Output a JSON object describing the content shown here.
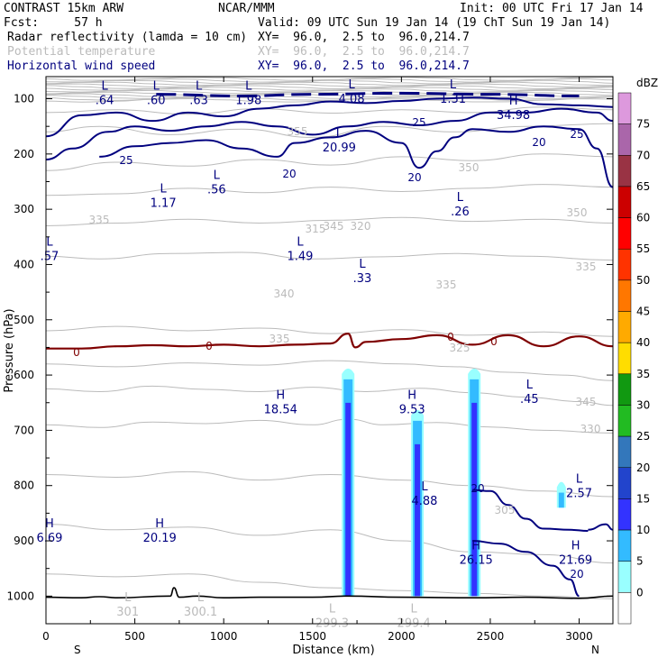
{
  "header": {
    "left_line1": "CONTRAST 15km ARW",
    "center_line1": "NCAR/MMM",
    "right_line1": "Init: 00 UTC Fri 17 Jan 14",
    "left_line2": "Fcst:     57 h",
    "valid_line2": "Valid: 09 UTC Sun 19 Jan 14 (19 ChT Sun 19 Jan 14)",
    "fields": [
      {
        "name": "Radar reflectivity (lamda = 10 cm)",
        "range": "XY=  96.0,  2.5 to  96.0,214.7",
        "color": "#000000"
      },
      {
        "name": "Potential temperature",
        "range": "XY=  96.0,  2.5 to  96.0,214.7",
        "color": "#bbbbbb"
      },
      {
        "name": "Horizontal wind speed",
        "range": "XY=  96.0,  2.5 to  96.0,214.7",
        "color": "#00007f"
      }
    ]
  },
  "colorbar": {
    "unit": "dBZ",
    "levels": [
      "0",
      "5",
      "10",
      "15",
      "20",
      "25",
      "30",
      "35",
      "40",
      "45",
      "50",
      "55",
      "60",
      "65",
      "70",
      "75"
    ],
    "colors": [
      "#ffffff",
      "#99ffff",
      "#33bbff",
      "#3333ff",
      "#2244cc",
      "#3377bb",
      "#22bb22",
      "#119911",
      "#ffdd00",
      "#ffaa00",
      "#ff7700",
      "#ff3300",
      "#ff0000",
      "#cc0000",
      "#993344",
      "#aa66aa",
      "#dd99dd"
    ]
  },
  "chart_data": {
    "type": "cross-section",
    "xlabel": "Distance (km)",
    "ylabel": "Pressure (hPa)",
    "xlim": [
      0,
      3190
    ],
    "ylim": [
      1050,
      60
    ],
    "x_ticks": [
      "0",
      "500",
      "1000",
      "1500",
      "2000",
      "2500",
      "3000"
    ],
    "x_tick_values": [
      0,
      500,
      1000,
      1500,
      2000,
      2500,
      3000
    ],
    "y_ticks": [
      "100",
      "200",
      "300",
      "400",
      "500",
      "600",
      "700",
      "800",
      "900",
      "1000"
    ],
    "y_tick_values": [
      100,
      200,
      300,
      400,
      500,
      600,
      700,
      800,
      900,
      1000
    ],
    "end_labels": {
      "left": "S",
      "right": "N"
    },
    "theta_contours": [
      {
        "value": 301,
        "label": "301"
      },
      {
        "value": 315,
        "label": "315"
      },
      {
        "value": 320,
        "label": "320"
      },
      {
        "value": 325,
        "label": "325"
      },
      {
        "value": 335,
        "label": "335"
      },
      {
        "value": 340,
        "label": "340"
      },
      {
        "value": 345,
        "label": "345"
      },
      {
        "value": 350,
        "label": "350"
      },
      {
        "value": 355,
        "label": "355"
      }
    ],
    "wind_contours": [
      "20",
      "25"
    ],
    "zero_line_label": "0",
    "extrema": [
      {
        "type": "L",
        "value": ".64",
        "x": 330,
        "p": 90
      },
      {
        "type": "L",
        "value": ".60",
        "x": 620,
        "p": 90
      },
      {
        "type": "L",
        "value": ".63",
        "x": 860,
        "p": 90
      },
      {
        "type": "L",
        "value": "1.98",
        "x": 1140,
        "p": 90
      },
      {
        "type": "L",
        "value": "4.08",
        "x": 1720,
        "p": 88
      },
      {
        "type": "L",
        "value": "1.31",
        "x": 2290,
        "p": 88
      },
      {
        "type": "H",
        "value": "34.98",
        "x": 2630,
        "p": 117
      },
      {
        "type": "L",
        "value": "20.99",
        "x": 1650,
        "p": 176
      },
      {
        "type": "L",
        "value": "1.17",
        "x": 660,
        "p": 276
      },
      {
        "type": "L",
        "value": ".56",
        "x": 960,
        "p": 252
      },
      {
        "type": "L",
        "value": ".26",
        "x": 2330,
        "p": 292
      },
      {
        "type": "L",
        "value": ".57",
        "x": 20,
        "p": 372
      },
      {
        "type": "L",
        "value": "1.49",
        "x": 1430,
        "p": 372
      },
      {
        "type": "L",
        "value": ".33",
        "x": 1780,
        "p": 412
      },
      {
        "type": "L",
        "value": ".45",
        "x": 2720,
        "p": 631
      },
      {
        "type": "H",
        "value": "18.54",
        "x": 1320,
        "p": 650
      },
      {
        "type": "H",
        "value": "9.53",
        "x": 2060,
        "p": 650
      },
      {
        "type": "L",
        "value": "4.88",
        "x": 2130,
        "p": 815
      },
      {
        "type": "L",
        "value": "2.57",
        "x": 3000,
        "p": 801
      },
      {
        "type": "H",
        "value": "6.69",
        "x": 20,
        "p": 882
      },
      {
        "type": "H",
        "value": "20.19",
        "x": 640,
        "p": 882
      },
      {
        "type": "H",
        "value": "26.15",
        "x": 2420,
        "p": 922
      },
      {
        "type": "H",
        "value": "21.69",
        "x": 2980,
        "p": 922
      },
      {
        "type": "L",
        "value": "301",
        "x": 460,
        "p": 1016
      },
      {
        "type": "L",
        "value": "300.1",
        "x": 870,
        "p": 1016
      },
      {
        "type": "L",
        "value": "299.3",
        "x": 1610,
        "p": 1036
      },
      {
        "type": "L",
        "value": "299.4",
        "x": 2070,
        "p": 1036
      }
    ],
    "reflectivity_cells": [
      {
        "x_center": 1700,
        "p_top": 585,
        "p_bottom": 1000,
        "max_dbz": 15
      },
      {
        "x_center": 2090,
        "p_top": 660,
        "p_bottom": 1000,
        "max_dbz": 15
      },
      {
        "x_center": 2410,
        "p_top": 585,
        "p_bottom": 1000,
        "max_dbz": 15
      },
      {
        "x_center": 2900,
        "p_top": 790,
        "p_bottom": 840,
        "max_dbz": 5
      }
    ]
  }
}
